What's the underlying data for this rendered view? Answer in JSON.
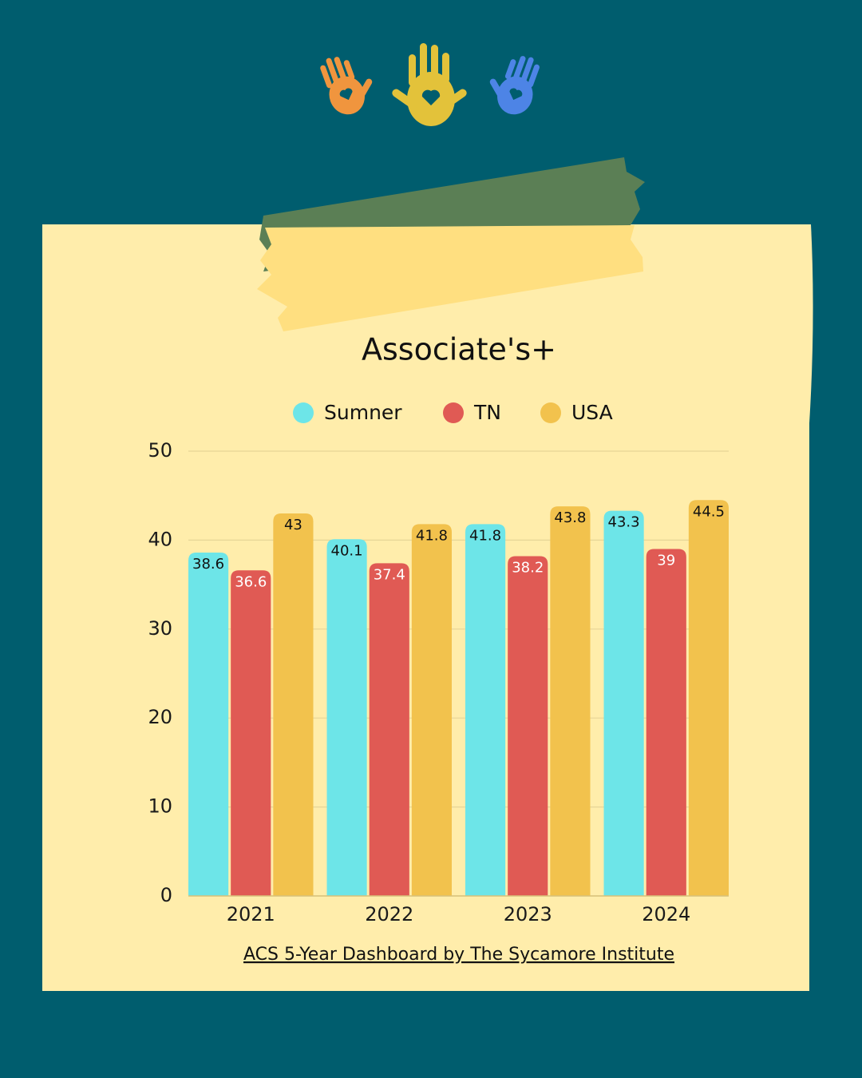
{
  "chart_data": {
    "type": "bar",
    "title": "Associate's+",
    "categories": [
      "2021",
      "2022",
      "2023",
      "2024"
    ],
    "series": [
      {
        "name": "Sumner",
        "color": "#6de5e8",
        "values": [
          38.6,
          40.1,
          41.8,
          43.3
        ]
      },
      {
        "name": "TN",
        "color": "#e05a54",
        "values": [
          36.6,
          37.4,
          38.2,
          39
        ]
      },
      {
        "name": "USA",
        "color": "#f2c24d",
        "values": [
          43,
          41.8,
          43.8,
          44.5
        ]
      }
    ],
    "ylim": [
      0,
      50
    ],
    "yticks": [
      0,
      10,
      20,
      30,
      40,
      50
    ],
    "grid": true,
    "source": "ACS 5-Year Dashboard by The Sycamore Institute"
  }
}
